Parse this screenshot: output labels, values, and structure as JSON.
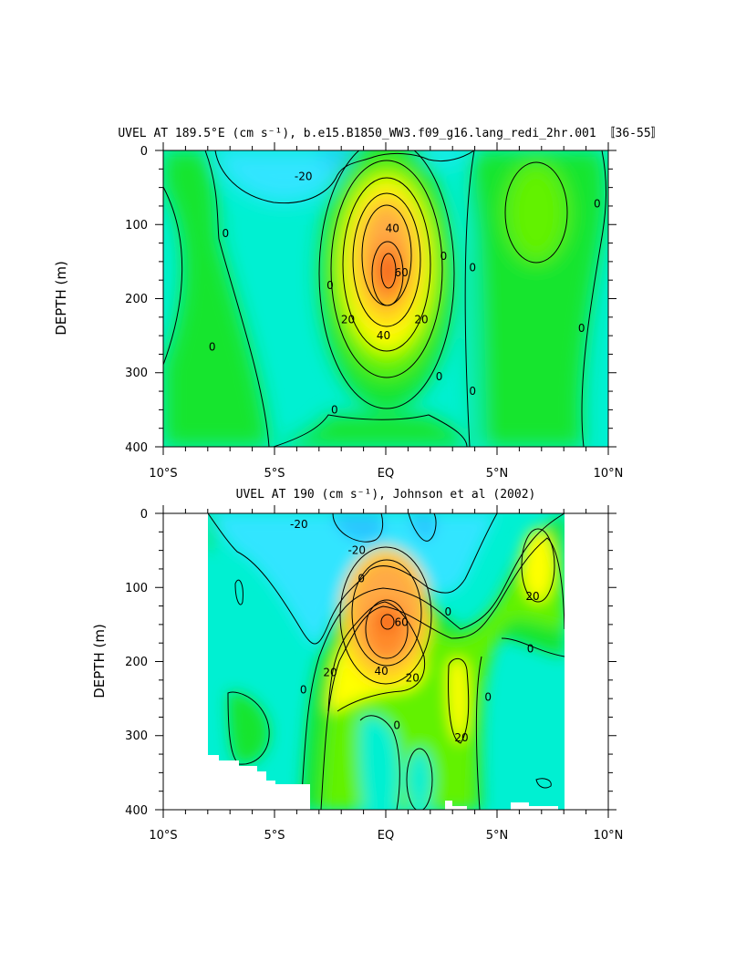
{
  "chart_data": [
    {
      "type": "contour",
      "title": "UVEL AT 189.5°E (cm s⁻¹), b.e15.B1850_WW3.f09_g16.lang_redi_2hr.001 〚36-55〛",
      "ylabel": "DEPTH (m)",
      "xlim": [
        -10,
        10
      ],
      "ylim": [
        400,
        0
      ],
      "x_ticks": [
        -10,
        -5,
        0,
        5,
        10
      ],
      "x_tick_labels": [
        "10°S",
        "5°S",
        "EQ",
        "5°N",
        "10°N"
      ],
      "y_ticks": [
        0,
        100,
        200,
        300,
        400
      ],
      "y_tick_labels": [
        "0",
        "100",
        "200",
        "300",
        "400"
      ],
      "contour_interval": 10,
      "core": {
        "lat": 0.1,
        "depth": 170,
        "max_speed": 70
      },
      "contour_labels": [
        {
          "text": "-20",
          "lat": -3.7,
          "depth": 35
        },
        {
          "text": "0",
          "lat": -7.2,
          "depth": 112
        },
        {
          "text": "0",
          "lat": -7.8,
          "depth": 265
        },
        {
          "text": "0",
          "lat": -2.5,
          "depth": 182
        },
        {
          "text": "0",
          "lat": -2.3,
          "depth": 350
        },
        {
          "text": "40",
          "lat": 0.3,
          "depth": 105
        },
        {
          "text": "60",
          "lat": 0.7,
          "depth": 165
        },
        {
          "text": "20",
          "lat": -1.7,
          "depth": 228
        },
        {
          "text": "40",
          "lat": -0.1,
          "depth": 250
        },
        {
          "text": "20",
          "lat": 1.6,
          "depth": 228
        },
        {
          "text": "0",
          "lat": 2.6,
          "depth": 143
        },
        {
          "text": "0",
          "lat": 3.9,
          "depth": 158
        },
        {
          "text": "0",
          "lat": 2.4,
          "depth": 305
        },
        {
          "text": "0",
          "lat": 3.9,
          "depth": 325
        },
        {
          "text": "0",
          "lat": 9.5,
          "depth": 72
        },
        {
          "text": "0",
          "lat": 8.8,
          "depth": 240
        }
      ]
    },
    {
      "type": "contour",
      "title": "UVEL AT 190 (cm s⁻¹), Johnson et al (2002)",
      "ylabel": "DEPTH (m)",
      "xlim": [
        -10,
        10
      ],
      "ylim": [
        400,
        0
      ],
      "x_ticks": [
        -10,
        -5,
        0,
        5,
        10
      ],
      "x_tick_labels": [
        "10°S",
        "5°S",
        "EQ",
        "5°N",
        "10°N"
      ],
      "y_ticks": [
        0,
        100,
        200,
        300,
        400
      ],
      "y_tick_labels": [
        "0",
        "100",
        "200",
        "300",
        "400"
      ],
      "contour_interval": 10,
      "data_coverage_lat": [
        -8,
        8
      ],
      "core": {
        "lat": 0.0,
        "depth": 150,
        "max_speed": 70
      },
      "contour_labels": [
        {
          "text": "-20",
          "lat": -3.9,
          "depth": 15
        },
        {
          "text": "-20",
          "lat": -1.3,
          "depth": 50
        },
        {
          "text": "0",
          "lat": -1.1,
          "depth": 88
        },
        {
          "text": "60",
          "lat": 0.7,
          "depth": 147
        },
        {
          "text": "40",
          "lat": -0.2,
          "depth": 213
        },
        {
          "text": "20",
          "lat": -2.5,
          "depth": 215
        },
        {
          "text": "20",
          "lat": 1.2,
          "depth": 222
        },
        {
          "text": "0",
          "lat": -3.7,
          "depth": 238
        },
        {
          "text": "0",
          "lat": 2.8,
          "depth": 133
        },
        {
          "text": "20",
          "lat": 6.6,
          "depth": 112
        },
        {
          "text": "0",
          "lat": 6.5,
          "depth": 183
        },
        {
          "text": "0",
          "lat": 4.6,
          "depth": 248
        },
        {
          "text": "0",
          "lat": 0.5,
          "depth": 286
        },
        {
          "text": "20",
          "lat": 3.4,
          "depth": 303
        }
      ]
    }
  ],
  "colors": {
    "lt_-30": "#29c6ff",
    "-30_-10": "#33e5ff",
    "-10_10": "#00f0d2",
    "10_20": "#19e52e",
    "20_30": "#62f200",
    "30_40": "#ffff00",
    "40_50": "#ffd21c",
    "50_60": "#ffaa44",
    "60_70": "#ff8a2a",
    "gt_70": "#ee3b00",
    "background": "#ffffff"
  }
}
